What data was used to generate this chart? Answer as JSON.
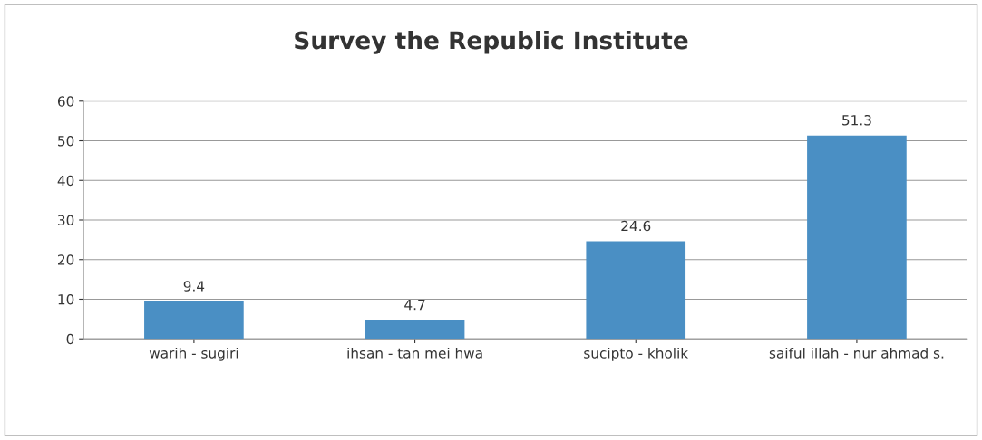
{
  "chart_data": {
    "type": "bar",
    "title": "Survey the Republic Institute",
    "categories": [
      "warih - sugiri",
      "ihsan - tan mei hwa",
      "sucipto - kholik",
      "saiful illah - nur ahmad s."
    ],
    "values": [
      9.4,
      4.7,
      24.6,
      51.3
    ],
    "color": "#4a8fc4",
    "ylim": [
      0,
      60
    ],
    "yticks": [
      0,
      10,
      20,
      30,
      40,
      50,
      60
    ],
    "grid": "y",
    "data_labels": true
  }
}
